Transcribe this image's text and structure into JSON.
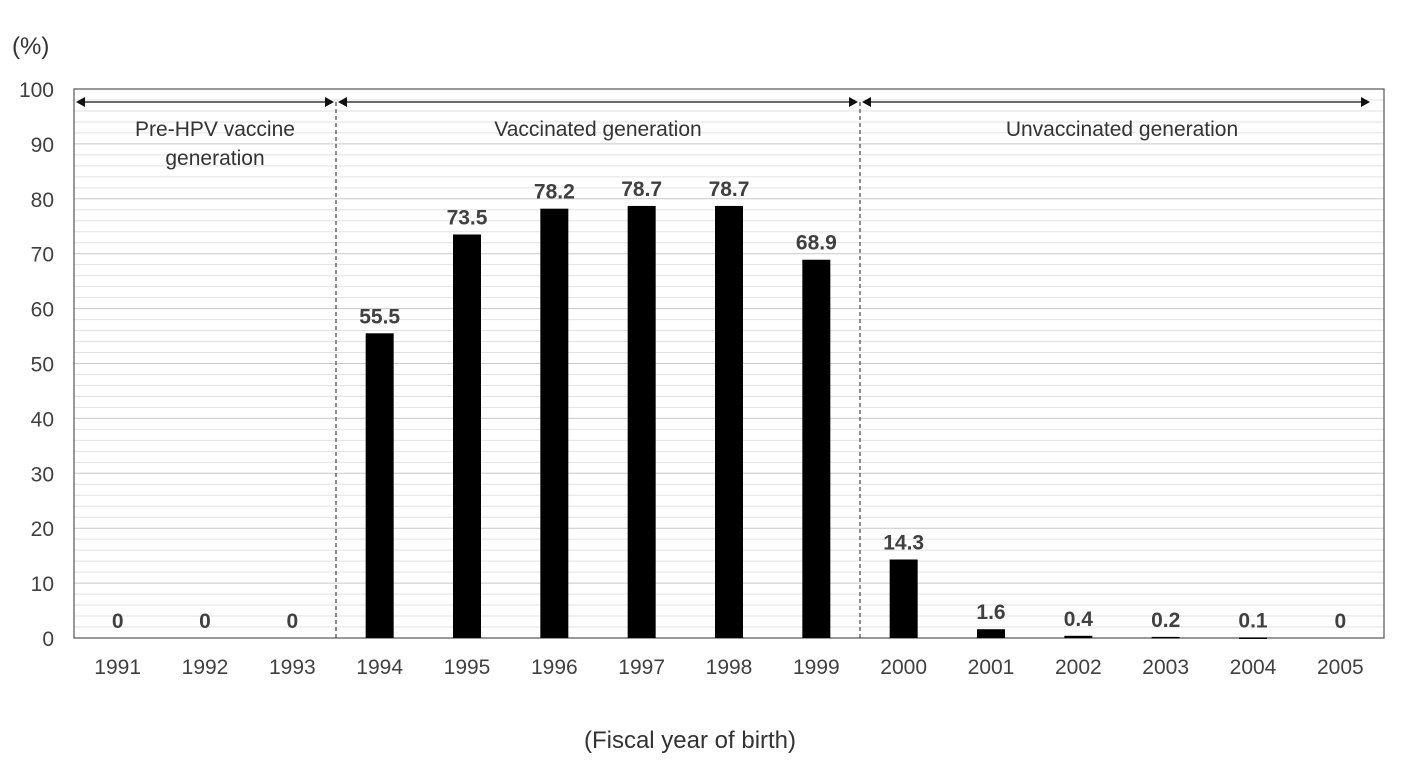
{
  "chart_data": {
    "type": "bar",
    "categories": [
      "1991",
      "1992",
      "1993",
      "1994",
      "1995",
      "1996",
      "1997",
      "1998",
      "1999",
      "2000",
      "2001",
      "2002",
      "2003",
      "2004",
      "2005"
    ],
    "values": [
      0,
      0,
      0,
      55.5,
      73.5,
      78.2,
      78.7,
      78.7,
      68.9,
      14.3,
      1.6,
      0.4,
      0.2,
      0.1,
      0
    ],
    "data_labels": [
      "0",
      "0",
      "0",
      "55.5",
      "73.5",
      "78.2",
      "78.7",
      "78.7",
      "68.9",
      "14.3",
      "1.6",
      "0.4",
      "0.2",
      "0.1",
      "0"
    ],
    "ylabel": "(%)",
    "xlabel": "(Fiscal year of birth)",
    "ylim": [
      0,
      100
    ],
    "yticks": [
      "0",
      "10",
      "20",
      "30",
      "40",
      "50",
      "60",
      "70",
      "80",
      "90",
      "100"
    ],
    "grid": true,
    "bar_color": "#000000",
    "regions": [
      {
        "label_lines": [
          "Pre-HPV vaccine",
          "generation"
        ],
        "start_category": "1991",
        "end_category": "1993"
      },
      {
        "label_lines": [
          "Vaccinated generation"
        ],
        "start_category": "1994",
        "end_category": "1999"
      },
      {
        "label_lines": [
          "Unvaccinated generation"
        ],
        "start_category": "2000",
        "end_category": "2005"
      }
    ]
  }
}
